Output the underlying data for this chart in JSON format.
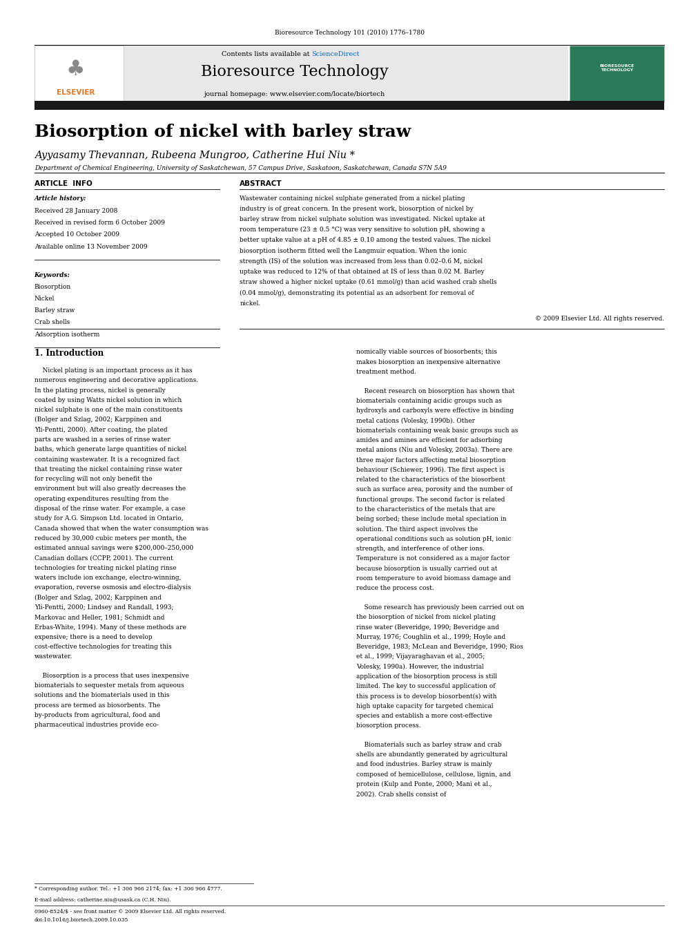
{
  "page_width": 9.92,
  "page_height": 13.23,
  "bg_color": "#ffffff",
  "top_citation": "Bioresource Technology 101 (2010) 1776–1780",
  "header_bg": "#e8e8e8",
  "header_sciencedirect_color": "#0066cc",
  "header_journal": "Bioresource Technology",
  "header_url": "journal homepage: www.elsevier.com/locate/biortech",
  "dark_bar_color": "#1a1a1a",
  "title": "Biosorption of nickel with barley straw",
  "authors": "Ayyasamy Thevannan, Rubeena Mungroo, Catherine Hui Niu *",
  "affiliation": "Department of Chemical Engineering, University of Saskatchewan, 57 Campus Drive, Saskatoon, Saskatchewan, Canada S7N 5A9",
  "article_info_header": "ARTICLE  INFO",
  "abstract_header": "ABSTRACT",
  "article_history_label": "Article history:",
  "received1": "Received 28 January 2008",
  "received2": "Received in revised form 6 October 2009",
  "accepted": "Accepted 10 October 2009",
  "available": "Available online 13 November 2009",
  "keywords_label": "Keywords:",
  "keywords": [
    "Biosorption",
    "Nickel",
    "Barley straw",
    "Crab shells",
    "Adsorption isotherm"
  ],
  "abstract_text": "Wastewater containing nickel sulphate generated from a nickel plating industry is of great concern. In the present work, biosorption of nickel by barley straw from nickel sulphate solution was investigated. Nickel uptake at room temperature (23 ± 0.5 °C) was very sensitive to solution pH, showing a better uptake value at a pH of 4.85 ± 0.10 among the tested values. The nickel biosorption isotherm fitted well the Langmuir equation. When the ionic strength (IS) of the solution was increased from less than 0.02–0.6 M, nickel uptake was reduced to 12% of that obtained at IS of less than 0.02 M. Barley straw showed a higher nickel uptake (0.61 mmol/g) than acid washed crab shells (0.04 mmol/g), demonstrating its potential as an adsorbent for removal of nickel.",
  "copyright": "© 2009 Elsevier Ltd. All rights reserved.",
  "section1_title": "1. Introduction",
  "intro_text1": "Nickel plating is an important process as it has numerous engineering and decorative applications. In the plating process, nickel is generally coated by using Watts nickel solution in which nickel sulphate is one of the main constituents (Bolger and Szlag, 2002; Karppinen and Yli-Pentti, 2000). After coating, the plated parts are washed in a series of rinse water baths, which generate large quantities of nickel containing wastewater. It is a recognized fact that treating the nickel containing rinse water for recycling will not only benefit the environment but will also greatly decreases the operating expenditures resulting from the disposal of the rinse water. For example, a case study for A.G. Simpson Ltd. located in Ontario, Canada showed that when the water consumption was reduced by 30,000 cubic meters per month, the estimated annual savings were $200,000–250,000 Canadian dollars (CCPP, 2001). The current technologies for treating nickel plating rinse waters include ion exchange, electro-winning, evaporation, reverse osmosis and electro-dialysis (Bolger and Szlag, 2002; Karppinen and Yli-Pentti, 2000; Lindsey and Randall, 1993; Markovac and Heller, 1981; Schmidt and Erbas-White, 1994). Many of these methods are expensive; there is a need to develop cost-effective technologies for treating this wastewater.",
  "intro_text2": "Biosorption is a process that uses inexpensive biomaterials to sequester metals from aqueous solutions and the biomaterials used in this process are termed as biosorbents. The by-products from agricultural, food and pharmaceutical industries provide eco-",
  "intro_right1": "nomically viable sources of biosorbents; this makes biosorption an inexpensive alternative treatment method.",
  "intro_right2": "Recent research on biosorption has shown that biomaterials containing acidic groups such as hydroxyls and carboxyls were effective in binding metal cations (Volesky, 1990b). Other biomaterials containing weak basic groups such as amides and amines are efficient for adsorbing metal anions (Niu and Volesky, 2003a). There are three major factors affecting metal biosorption behaviour (Schiewer, 1996). The first aspect is related to the characteristics of the biosorbent such as surface area, porosity and the number of functional groups. The second factor is related to the characteristics of the metals that are being sorbed; these include metal speciation in solution. The third aspect involves the operational conditions such as solution pH, ionic strength, and interference of other ions. Temperature is not considered as a major factor because biosorption is usually carried out at room temperature to avoid biomass damage and reduce the process cost.",
  "intro_right3": "Some research has previously been carried out on the biosorption of nickel from nickel plating rinse water (Beveridge, 1990; Beveridge and Murray, 1976; Coughlin et al., 1999; Hoyle and Beveridge, 1983; McLean and Beveridge, 1990; Rios et al., 1999; Vijayaraghavan et al., 2005; Volesky, 1990a). However, the industrial application of the biosorption process is still limited. The key to successful application of this process is to develop biosorbent(s) with high uptake capacity for targeted chemical species and establish a more cost-effective biosorption process.",
  "intro_right4": "Biomaterials such as barley straw and crab shells are abundantly generated by agricultural and food industries. Barley straw is mainly composed of hemicellulose, cellulose, lignin, and protein (Kulp and Ponte, 2000; Mani et al., 2002). Crab shells consist of",
  "footnote_star": "* Corresponding author. Tel.: +1 306 966 2174; fax: +1 306 966 4777.",
  "footnote_email": "E-mail address: catherine.niu@usask.ca (C.H. Niu).",
  "footer1": "0960-8524/$ - see front matter © 2009 Elsevier Ltd. All rights reserved.",
  "footer2": "doi:10.1016/j.biortech.2009.10.035"
}
